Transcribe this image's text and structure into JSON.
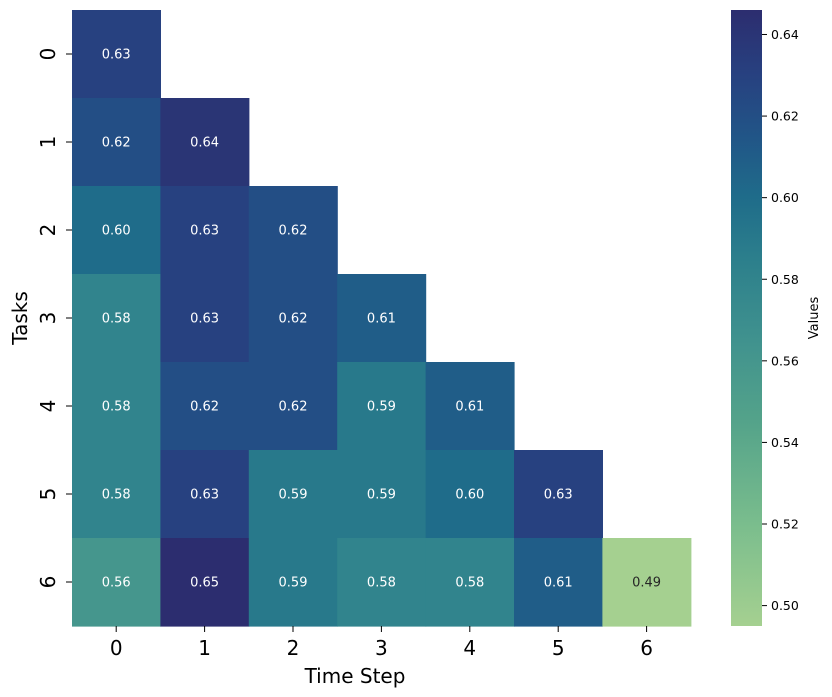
{
  "chart_data": {
    "type": "heatmap",
    "title": "",
    "xlabel": "Time Step",
    "ylabel": "Tasks",
    "x_categories": [
      "0",
      "1",
      "2",
      "3",
      "4",
      "5",
      "6"
    ],
    "y_categories": [
      "0",
      "1",
      "2",
      "3",
      "4",
      "5",
      "6"
    ],
    "values": [
      [
        0.63,
        null,
        null,
        null,
        null,
        null,
        null
      ],
      [
        0.62,
        0.64,
        null,
        null,
        null,
        null,
        null
      ],
      [
        0.6,
        0.63,
        0.62,
        null,
        null,
        null,
        null
      ],
      [
        0.58,
        0.63,
        0.62,
        0.61,
        null,
        null,
        null
      ],
      [
        0.58,
        0.62,
        0.62,
        0.59,
        0.61,
        null,
        null
      ],
      [
        0.58,
        0.63,
        0.59,
        0.59,
        0.6,
        0.63,
        null
      ],
      [
        0.56,
        0.65,
        0.59,
        0.58,
        0.58,
        0.61,
        0.49
      ]
    ],
    "cell_labels": [
      [
        "0.63",
        "",
        "",
        "",
        "",
        "",
        ""
      ],
      [
        "0.62",
        "0.64",
        "",
        "",
        "",
        "",
        ""
      ],
      [
        "0.60",
        "0.63",
        "0.62",
        "",
        "",
        "",
        ""
      ],
      [
        "0.58",
        "0.63",
        "0.62",
        "0.61",
        "",
        "",
        ""
      ],
      [
        "0.58",
        "0.62",
        "0.62",
        "0.59",
        "0.61",
        "",
        ""
      ],
      [
        "0.58",
        "0.63",
        "0.59",
        "0.59",
        "0.60",
        "0.63",
        ""
      ],
      [
        "0.56",
        "0.65",
        "0.59",
        "0.58",
        "0.58",
        "0.61",
        "0.49"
      ]
    ],
    "colorbar": {
      "label": "Values",
      "range": [
        0.495,
        0.646
      ],
      "ticks": [
        0.5,
        0.52,
        0.54,
        0.56,
        0.58,
        0.6,
        0.62,
        0.64
      ],
      "tick_labels": [
        "0.50",
        "0.52",
        "0.54",
        "0.56",
        "0.58",
        "0.60",
        "0.62",
        "0.64"
      ]
    },
    "colormap": "crest",
    "colormap_stops": [
      {
        "value": 0.495,
        "color": "#a5d090"
      },
      {
        "value": 0.52,
        "color": "#7abd8d"
      },
      {
        "value": 0.545,
        "color": "#54a38a"
      },
      {
        "value": 0.565,
        "color": "#40928e"
      },
      {
        "value": 0.585,
        "color": "#2c7f8c"
      },
      {
        "value": 0.6,
        "color": "#1f6c8a"
      },
      {
        "value": 0.615,
        "color": "#215587"
      },
      {
        "value": 0.63,
        "color": "#274180"
      },
      {
        "value": 0.646,
        "color": "#2c2d6f"
      }
    ],
    "grid": false,
    "legend": "colorbar-right"
  }
}
